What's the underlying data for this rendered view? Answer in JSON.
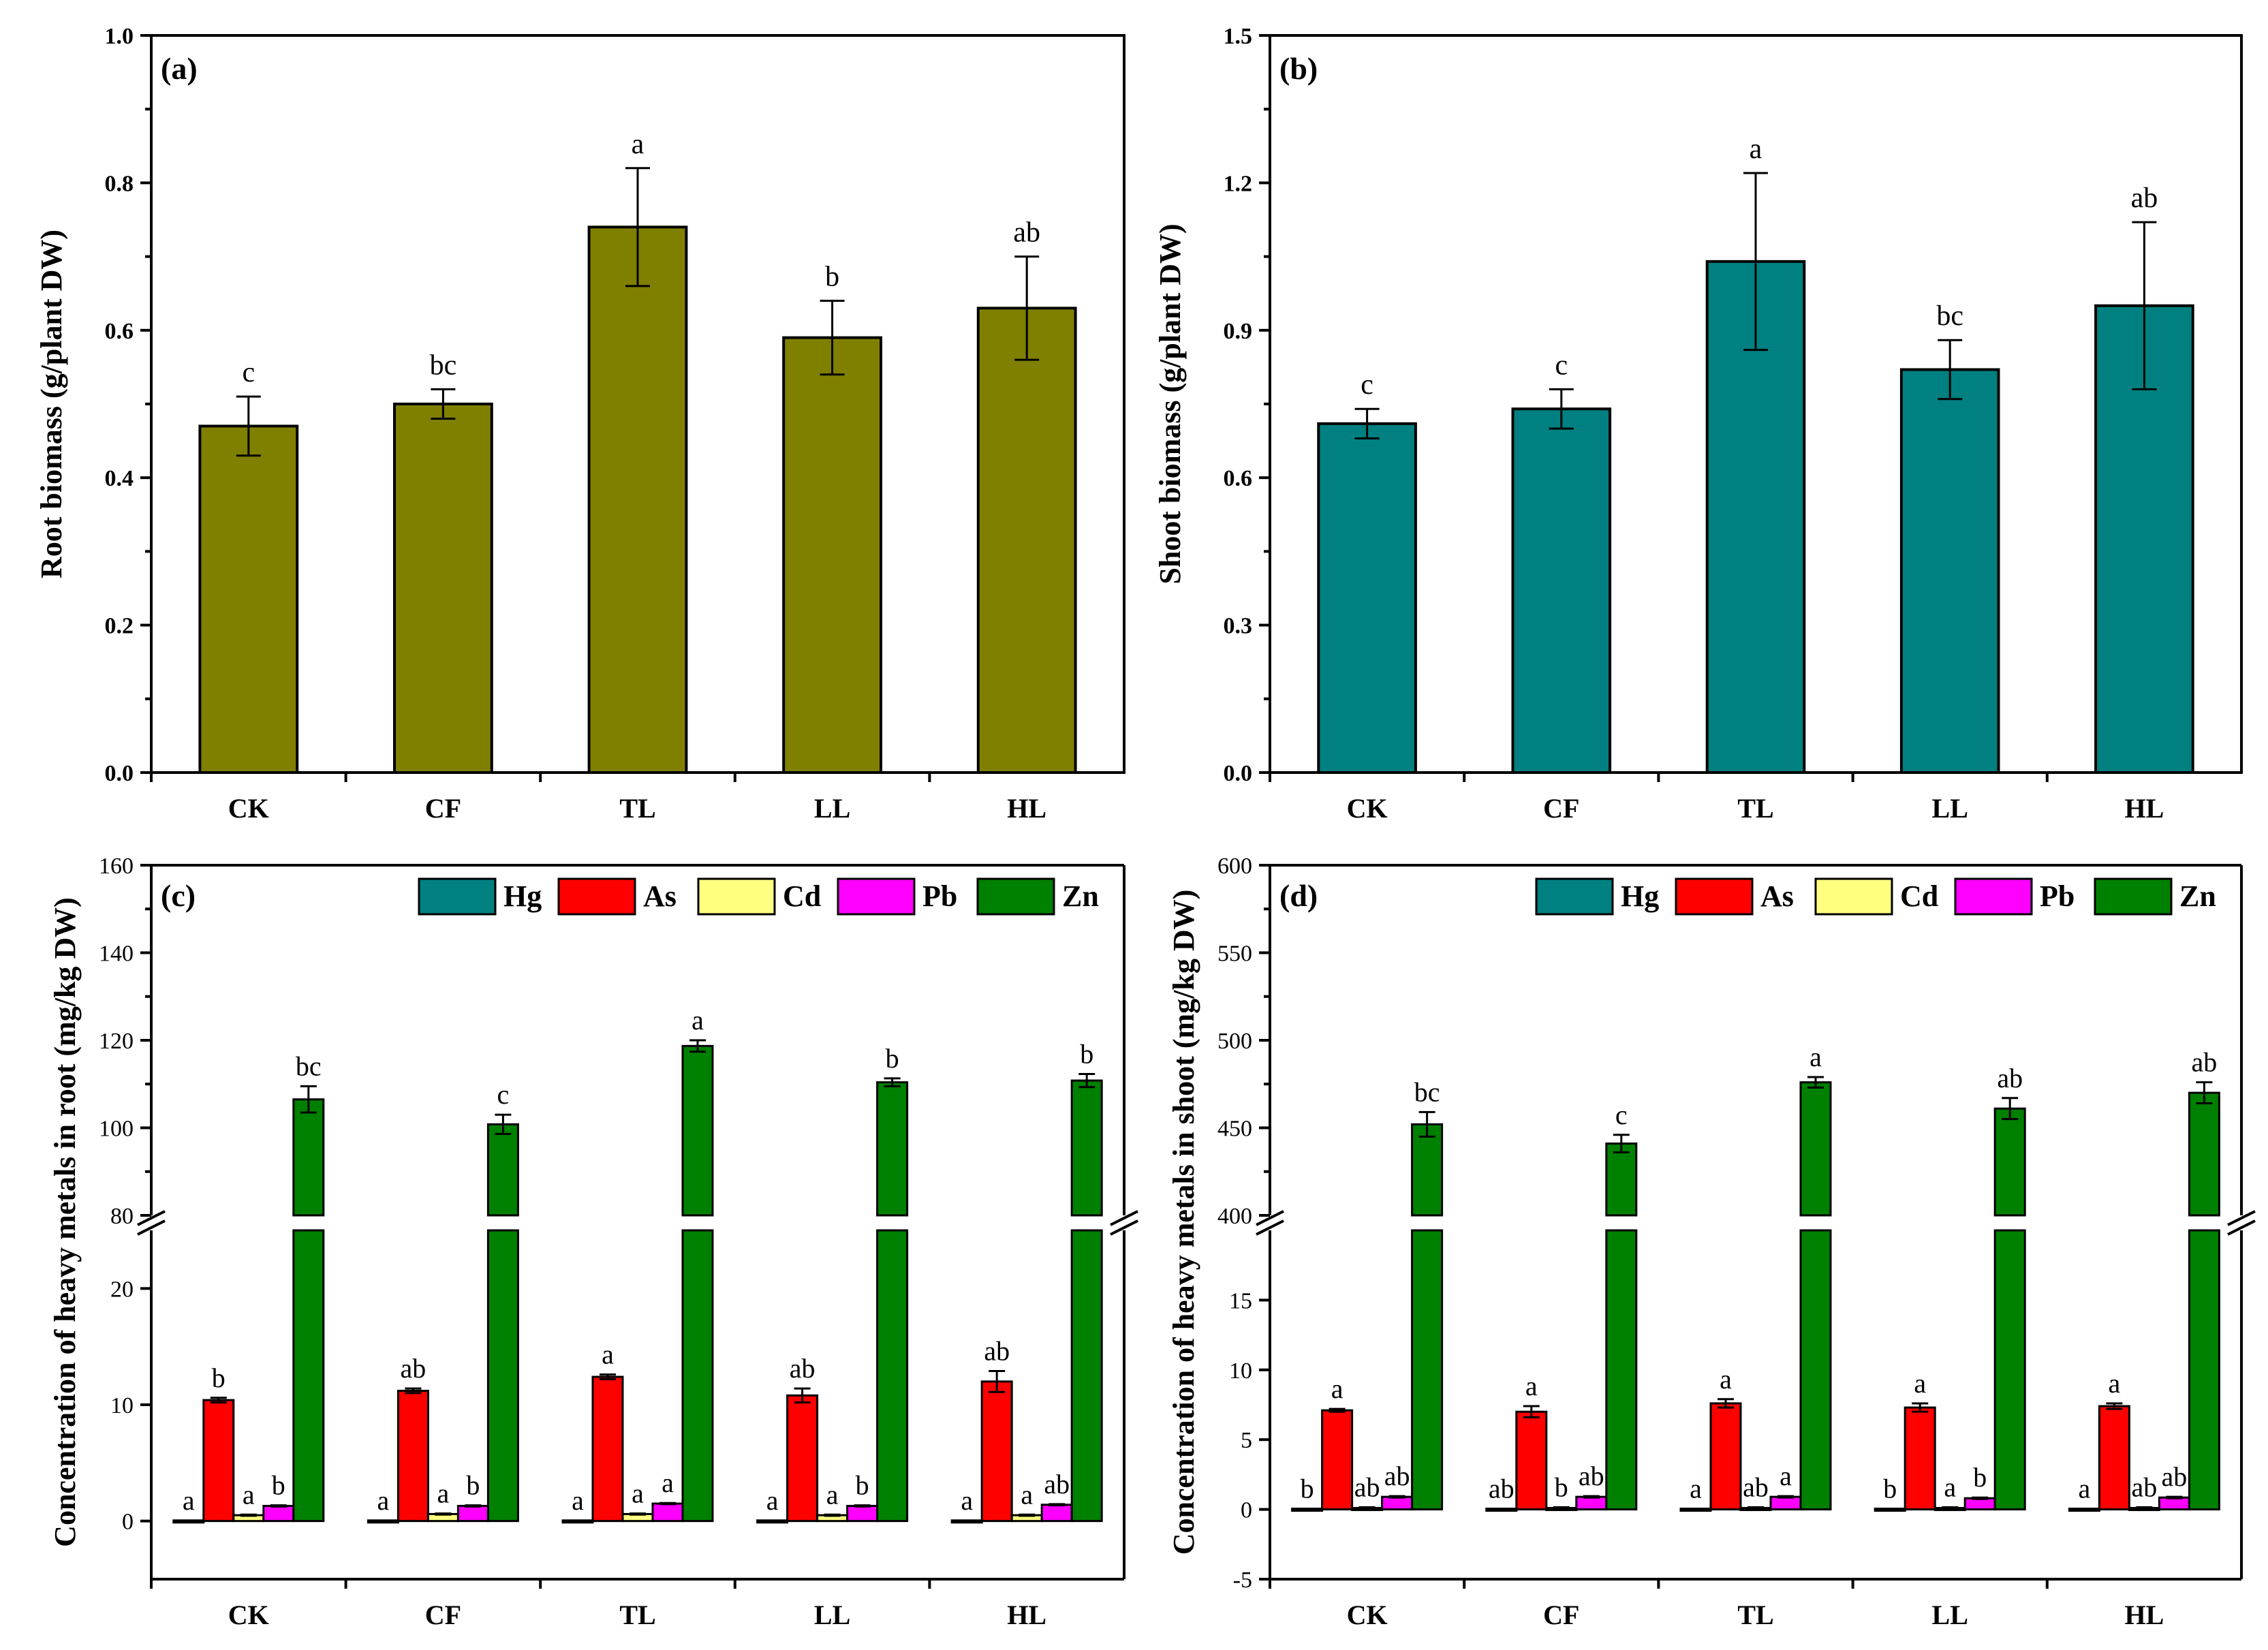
{
  "chart_data": [
    {
      "panel": "(a)",
      "type": "bar",
      "categories": [
        "CK",
        "CF",
        "TL",
        "LL",
        "HL"
      ],
      "series": [
        {
          "values": [
            0.47,
            0.5,
            0.74,
            0.59,
            0.63
          ],
          "errors": [
            0.04,
            0.02,
            0.08,
            0.05,
            0.07
          ],
          "letters": [
            "c",
            "bc",
            "a",
            "b",
            "ab"
          ]
        }
      ],
      "ylabel": "Root biomass (g/plant DW)",
      "ylim": [
        0,
        1.0
      ],
      "yticks": [
        "0.0",
        "0.2",
        "0.4",
        "0.6",
        "0.8",
        "1.0"
      ],
      "ytick_values": [
        0,
        0.2,
        0.4,
        0.6,
        0.8,
        1.0
      ],
      "color": "#808000"
    },
    {
      "panel": "(b)",
      "type": "bar",
      "categories": [
        "CK",
        "CF",
        "TL",
        "LL",
        "HL"
      ],
      "series": [
        {
          "values": [
            0.71,
            0.74,
            1.04,
            0.82,
            0.95
          ],
          "errors": [
            0.03,
            0.04,
            0.18,
            0.06,
            0.17
          ],
          "letters": [
            "c",
            "c",
            "a",
            "bc",
            "ab"
          ]
        }
      ],
      "ylabel": "Shoot biomass (g/plant DW)",
      "ylim": [
        0,
        1.5
      ],
      "yticks": [
        "0.0",
        "0.3",
        "0.6",
        "0.9",
        "1.2",
        "1.5"
      ],
      "ytick_values": [
        0,
        0.3,
        0.6,
        0.9,
        1.2,
        1.5
      ],
      "color": "#008080"
    },
    {
      "panel": "(c)",
      "type": "bar",
      "categories": [
        "CK",
        "CF",
        "TL",
        "LL",
        "HL"
      ],
      "ylabel": "Concentration of heavy metals in root (mg/kg DW)",
      "axis_break": true,
      "ylim_lower": [
        -5,
        25
      ],
      "ylim_upper": [
        80,
        160
      ],
      "yticks_lower": [
        "0",
        "10",
        "20"
      ],
      "ytick_values_lower": [
        0,
        10,
        20
      ],
      "yticks_upper": [
        "80",
        "100",
        "120",
        "140",
        "160"
      ],
      "ytick_values_upper": [
        80,
        100,
        120,
        140,
        160
      ],
      "legend_position": "top-right",
      "series": [
        {
          "name": "Hg",
          "color": "#008080",
          "values": [
            0.05,
            0.05,
            0.05,
            0.05,
            0.05
          ],
          "errors": [
            0,
            0,
            0,
            0,
            0
          ],
          "letters": [
            "a",
            "a",
            "a",
            "a",
            "a"
          ]
        },
        {
          "name": "As",
          "color": "#ff0000",
          "values": [
            10.4,
            11.2,
            12.4,
            10.8,
            12.0
          ],
          "errors": [
            0.2,
            0.2,
            0.2,
            0.6,
            0.9
          ],
          "letters": [
            "b",
            "ab",
            "a",
            "ab",
            "ab"
          ]
        },
        {
          "name": "Cd",
          "color": "#ffff80",
          "values": [
            0.5,
            0.6,
            0.6,
            0.5,
            0.5
          ],
          "errors": [
            0.05,
            0.05,
            0.05,
            0.05,
            0.05
          ],
          "letters": [
            "a",
            "a",
            "a",
            "a",
            "a"
          ]
        },
        {
          "name": "Pb",
          "color": "#ff00ff",
          "values": [
            1.3,
            1.3,
            1.5,
            1.3,
            1.4
          ],
          "errors": [
            0.05,
            0.05,
            0.05,
            0.05,
            0.05
          ],
          "letters": [
            "b",
            "b",
            "a",
            "b",
            "ab"
          ]
        },
        {
          "name": "Zn",
          "color": "#008000",
          "values": [
            106.5,
            100.8,
            118.7,
            110.4,
            110.8
          ],
          "errors": [
            3.0,
            2.2,
            1.3,
            0.9,
            1.5
          ],
          "letters": [
            "bc",
            "c",
            "a",
            "b",
            "b"
          ]
        }
      ]
    },
    {
      "panel": "(d)",
      "type": "bar",
      "categories": [
        "CK",
        "CF",
        "TL",
        "LL",
        "HL"
      ],
      "ylabel": "Concentration of heavy metals in shoot (mg/kg DW)",
      "axis_break": true,
      "ylim_lower": [
        -5,
        20
      ],
      "ylim_upper": [
        400,
        600
      ],
      "yticks_lower": [
        "-5",
        "0",
        "5",
        "10",
        "15"
      ],
      "ytick_values_lower": [
        -5,
        0,
        5,
        10,
        15
      ],
      "yticks_upper": [
        "400",
        "450",
        "500",
        "550",
        "600"
      ],
      "ytick_values_upper": [
        400,
        450,
        500,
        550,
        600
      ],
      "legend_position": "top-right",
      "series": [
        {
          "name": "Hg",
          "color": "#008080",
          "values": [
            0.05,
            0.05,
            0.05,
            0.05,
            0.05
          ],
          "errors": [
            0,
            0,
            0,
            0,
            0
          ],
          "letters": [
            "b",
            "ab",
            "a",
            "b",
            "a"
          ]
        },
        {
          "name": "As",
          "color": "#ff0000",
          "values": [
            7.1,
            7.0,
            7.6,
            7.3,
            7.4
          ],
          "errors": [
            0.1,
            0.4,
            0.3,
            0.3,
            0.2
          ],
          "letters": [
            "a",
            "a",
            "a",
            "a",
            "a"
          ]
        },
        {
          "name": "Cd",
          "color": "#ffff80",
          "values": [
            0.1,
            0.1,
            0.1,
            0.1,
            0.1
          ],
          "errors": [
            0.05,
            0.05,
            0.05,
            0.05,
            0.05
          ],
          "letters": [
            "ab",
            "b",
            "ab",
            "a",
            "ab"
          ]
        },
        {
          "name": "Pb",
          "color": "#ff00ff",
          "values": [
            0.9,
            0.9,
            0.9,
            0.8,
            0.85
          ],
          "errors": [
            0.05,
            0.05,
            0.05,
            0.05,
            0.05
          ],
          "letters": [
            "ab",
            "ab",
            "a",
            "b",
            "ab"
          ]
        },
        {
          "name": "Zn",
          "color": "#008000",
          "values": [
            452,
            441,
            476,
            461,
            470
          ],
          "errors": [
            7,
            5,
            3,
            6,
            6
          ],
          "letters": [
            "bc",
            "c",
            "a",
            "ab",
            "ab"
          ]
        }
      ]
    }
  ]
}
